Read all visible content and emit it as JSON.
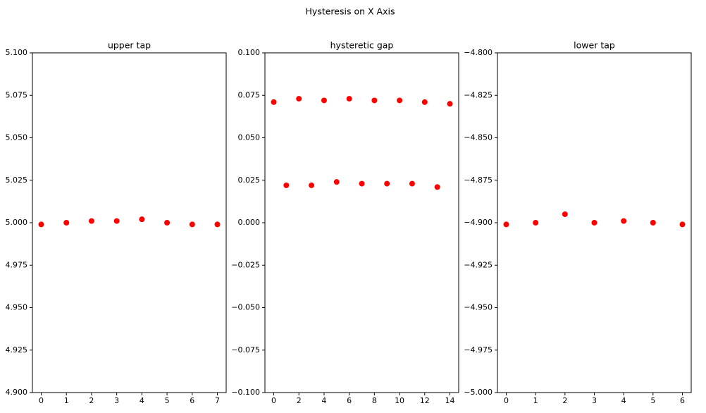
{
  "title": "Hysteresis on X Axis",
  "chart_data": [
    {
      "type": "scatter",
      "title": "upper tap",
      "color": "#ff0000",
      "x": [
        0,
        1,
        2,
        3,
        4,
        5,
        6,
        7
      ],
      "values": [
        4.999,
        5.0,
        5.001,
        5.001,
        5.002,
        5.0,
        4.999,
        4.999
      ],
      "xlim": [
        -0.35,
        7.35
      ],
      "xticks": [
        0,
        1,
        2,
        3,
        4,
        5,
        6,
        7
      ],
      "ylim": [
        4.9,
        5.1
      ],
      "yticks": [
        {
          "value": 4.9,
          "label": "4.900"
        },
        4.925,
        {
          "value": 4.95,
          "label": "4.950"
        },
        4.975,
        {
          "value": 5.0,
          "label": "5.000"
        },
        5.025,
        {
          "value": 5.05,
          "label": "5.050"
        },
        5.075,
        {
          "value": 5.1,
          "label": "5.100"
        }
      ]
    },
    {
      "type": "scatter",
      "title": "hysteretic gap",
      "color": "#ff0000",
      "x": [
        0,
        1,
        2,
        3,
        4,
        5,
        6,
        7,
        8,
        9,
        10,
        11,
        12,
        13,
        14
      ],
      "values": [
        0.071,
        0.022,
        0.073,
        0.022,
        0.072,
        0.024,
        0.073,
        0.023,
        0.072,
        0.023,
        0.072,
        0.023,
        0.071,
        0.021,
        0.07
      ],
      "xlim": [
        -0.7,
        14.7
      ],
      "xticks": [
        0,
        2,
        4,
        6,
        8,
        10,
        12,
        14
      ],
      "ylim": [
        -0.1,
        0.1
      ],
      "yticks": [
        {
          "value": -0.1,
          "label": "−0.100"
        },
        {
          "value": -0.075,
          "label": "−0.075"
        },
        {
          "value": -0.05,
          "label": "−0.050"
        },
        {
          "value": -0.025,
          "label": "−0.025"
        },
        {
          "value": 0,
          "label": "0.000"
        },
        0.025,
        {
          "value": 0.05,
          "label": "0.050"
        },
        0.075,
        {
          "value": 0.1,
          "label": "0.100"
        }
      ]
    },
    {
      "type": "scatter",
      "title": "lower tap",
      "color": "#ff0000",
      "x": [
        0,
        1,
        2,
        3,
        4,
        5,
        6
      ],
      "values": [
        -4.901,
        -4.9,
        -4.895,
        -4.9,
        -4.899,
        -4.9,
        -4.901
      ],
      "xlim": [
        -0.3,
        6.3
      ],
      "xticks": [
        0,
        1,
        2,
        3,
        4,
        5,
        6
      ],
      "ylim": [
        -5.0,
        -4.8
      ],
      "yticks": [
        {
          "value": -5.0,
          "label": "−5.000"
        },
        {
          "value": -4.975,
          "label": "−4.975"
        },
        {
          "value": -4.95,
          "label": "−4.950"
        },
        {
          "value": -4.925,
          "label": "−4.925"
        },
        {
          "value": -4.9,
          "label": "−4.900"
        },
        {
          "value": -4.875,
          "label": "−4.875"
        },
        {
          "value": -4.85,
          "label": "−4.850"
        },
        {
          "value": -4.825,
          "label": "−4.825"
        },
        {
          "value": -4.8,
          "label": "−4.800"
        }
      ]
    }
  ]
}
